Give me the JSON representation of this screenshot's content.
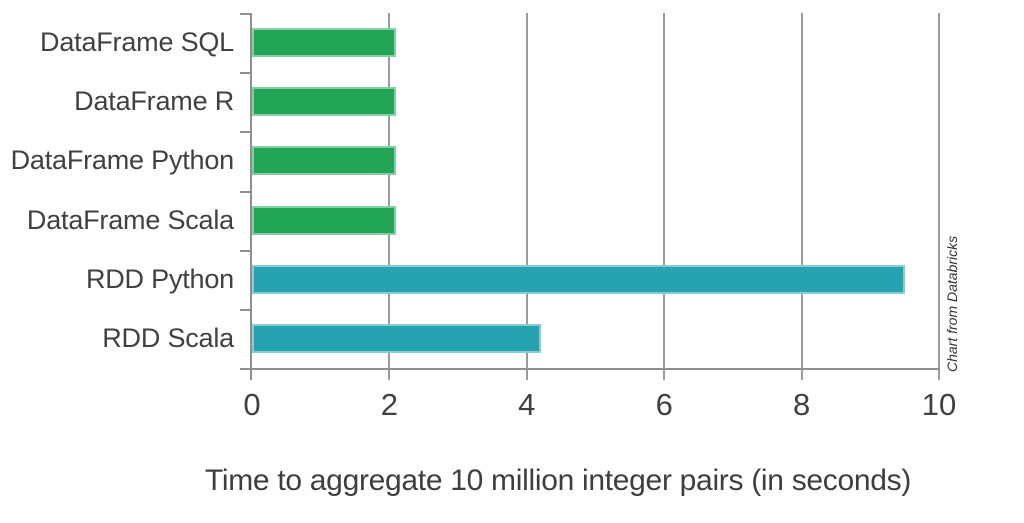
{
  "chart_data": {
    "type": "bar",
    "orientation": "horizontal",
    "title": "Time to aggregate 10 million integer pairs (in seconds)",
    "xlabel": "",
    "ylabel": "",
    "categories": [
      "DataFrame SQL",
      "DataFrame R",
      "DataFrame Python",
      "DataFrame Scala",
      "RDD Python",
      "RDD Scala"
    ],
    "values": [
      2.1,
      2.1,
      2.1,
      2.1,
      9.5,
      4.2
    ],
    "bar_colors": [
      "#23a558",
      "#23a558",
      "#23a558",
      "#23a558",
      "#26a3af",
      "#26a3af"
    ],
    "xlim": [
      0,
      10
    ],
    "x_ticks": [
      0,
      2,
      4,
      6,
      8,
      10
    ],
    "grid": true,
    "legend": "none",
    "credit": "Chart from Databricks",
    "colors": {
      "dataframe_green": "#23a558",
      "rdd_teal": "#26a3af",
      "gridline_gray": "#9b9b9b",
      "text_gray": "#414141"
    }
  }
}
